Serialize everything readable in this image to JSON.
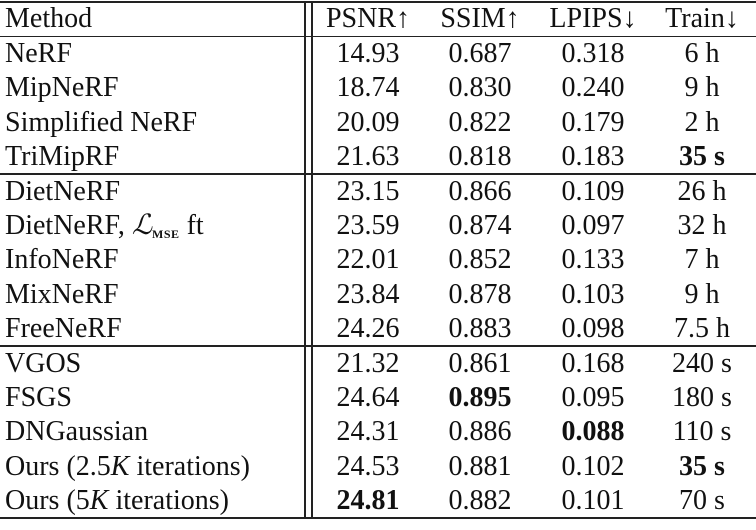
{
  "table": {
    "headers": [
      "Method",
      "PSNR↑",
      "SSIM↑",
      "LPIPS↓",
      "Train↓"
    ],
    "groups": [
      [
        {
          "method": [
            {
              "t": "NeRF"
            }
          ],
          "values": [
            "14.93",
            "0.687",
            "0.318",
            "6 h"
          ],
          "bold": [
            false,
            false,
            false,
            false
          ]
        },
        {
          "method": [
            {
              "t": "MipNeRF"
            }
          ],
          "values": [
            "18.74",
            "0.830",
            "0.240",
            "9 h"
          ],
          "bold": [
            false,
            false,
            false,
            false
          ]
        },
        {
          "method": [
            {
              "t": "Simplified NeRF"
            }
          ],
          "values": [
            "20.09",
            "0.822",
            "0.179",
            "2 h"
          ],
          "bold": [
            false,
            false,
            false,
            false
          ]
        },
        {
          "method": [
            {
              "t": "TriMipRF"
            }
          ],
          "values": [
            "21.63",
            "0.818",
            "0.183",
            "35 s"
          ],
          "bold": [
            false,
            false,
            false,
            true
          ]
        }
      ],
      [
        {
          "method": [
            {
              "t": "DietNeRF"
            }
          ],
          "values": [
            "23.15",
            "0.866",
            "0.109",
            "26 h"
          ],
          "bold": [
            false,
            false,
            false,
            false
          ]
        },
        {
          "method": [
            {
              "t": "DietNeRF, "
            },
            {
              "t": "ℒ",
              "s": "math"
            },
            {
              "t": "mse",
              "s": "sub"
            },
            {
              "t": " ft"
            }
          ],
          "values": [
            "23.59",
            "0.874",
            "0.097",
            "32 h"
          ],
          "bold": [
            false,
            false,
            false,
            false
          ]
        },
        {
          "method": [
            {
              "t": "InfoNeRF"
            }
          ],
          "values": [
            "22.01",
            "0.852",
            "0.133",
            "7 h"
          ],
          "bold": [
            false,
            false,
            false,
            false
          ]
        },
        {
          "method": [
            {
              "t": "MixNeRF"
            }
          ],
          "values": [
            "23.84",
            "0.878",
            "0.103",
            "9 h"
          ],
          "bold": [
            false,
            false,
            false,
            false
          ]
        },
        {
          "method": [
            {
              "t": "FreeNeRF"
            }
          ],
          "values": [
            "24.26",
            "0.883",
            "0.098",
            "7.5 h"
          ],
          "bold": [
            false,
            false,
            false,
            false
          ]
        }
      ],
      [
        {
          "method": [
            {
              "t": "VGOS"
            }
          ],
          "values": [
            "21.32",
            "0.861",
            "0.168",
            "240 s"
          ],
          "bold": [
            false,
            false,
            false,
            false
          ]
        },
        {
          "method": [
            {
              "t": "FSGS"
            }
          ],
          "values": [
            "24.64",
            "0.895",
            "0.095",
            "180 s"
          ],
          "bold": [
            false,
            true,
            false,
            false
          ]
        },
        {
          "method": [
            {
              "t": "DNGaussian"
            }
          ],
          "values": [
            "24.31",
            "0.886",
            "0.088",
            "110 s"
          ],
          "bold": [
            false,
            false,
            true,
            false
          ]
        },
        {
          "method": [
            {
              "t": "Ours (2.5"
            },
            {
              "t": "K",
              "s": "math"
            },
            {
              "t": " iterations)"
            }
          ],
          "values": [
            "24.53",
            "0.881",
            "0.102",
            "35 s"
          ],
          "bold": [
            false,
            false,
            false,
            true
          ]
        },
        {
          "method": [
            {
              "t": "Ours (5"
            },
            {
              "t": "K",
              "s": "math"
            },
            {
              "t": " iterations)"
            }
          ],
          "values": [
            "24.81",
            "0.882",
            "0.101",
            "70 s"
          ],
          "bold": [
            true,
            false,
            false,
            false
          ]
        }
      ]
    ]
  }
}
